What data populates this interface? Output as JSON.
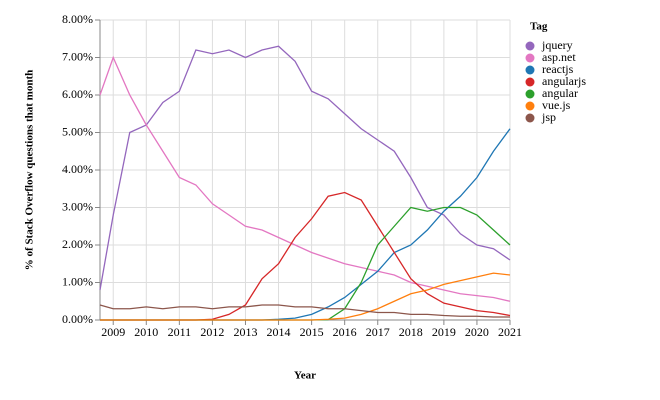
{
  "chart_data": {
    "type": "line",
    "x_label": "Year",
    "y_label": "% of Stack Overflow questions that month",
    "legend_title": "Tag",
    "legend": "right",
    "grid": true,
    "x": [
      2008.6,
      2009.0,
      2009.5,
      2010.0,
      2010.5,
      2011.0,
      2011.5,
      2012.0,
      2012.5,
      2013.0,
      2013.5,
      2014.0,
      2014.5,
      2015.0,
      2015.5,
      2016.0,
      2016.5,
      2017.0,
      2017.5,
      2018.0,
      2018.5,
      2019.0,
      2019.5,
      2020.0,
      2020.5,
      2021.0
    ],
    "xlim": [
      2008.6,
      2021.0
    ],
    "xticks": [
      2009,
      2010,
      2011,
      2012,
      2013,
      2014,
      2015,
      2016,
      2017,
      2018,
      2019,
      2020,
      2021
    ],
    "ylim": [
      0,
      8
    ],
    "yticks": [
      {
        "value": 0,
        "label": "0.00%"
      },
      {
        "value": 1,
        "label": "1.00%"
      },
      {
        "value": 2,
        "label": "2.00%"
      },
      {
        "value": 3,
        "label": "3.00%"
      },
      {
        "value": 4,
        "label": "4.00%"
      },
      {
        "value": 5,
        "label": "5.00%"
      },
      {
        "value": 6,
        "label": "6.00%"
      },
      {
        "value": 7,
        "label": "7.00%"
      },
      {
        "value": 8,
        "label": "8.00%"
      }
    ],
    "series": [
      {
        "name": "jquery",
        "color": "#9467bd",
        "values": [
          0.8,
          2.8,
          5.0,
          5.2,
          5.8,
          6.1,
          7.2,
          7.1,
          7.2,
          7.0,
          7.2,
          7.3,
          6.9,
          6.1,
          5.9,
          5.5,
          5.1,
          4.8,
          4.5,
          3.8,
          3.0,
          2.8,
          2.3,
          2.0,
          1.9,
          1.6
        ]
      },
      {
        "name": "asp.net",
        "color": "#e377c2",
        "values": [
          6.0,
          7.0,
          6.0,
          5.2,
          4.5,
          3.8,
          3.6,
          3.1,
          2.8,
          2.5,
          2.4,
          2.2,
          2.0,
          1.8,
          1.65,
          1.5,
          1.4,
          1.3,
          1.2,
          1.0,
          0.9,
          0.8,
          0.7,
          0.65,
          0.6,
          0.5
        ]
      },
      {
        "name": "reactjs",
        "color": "#1f77b4",
        "values": [
          0,
          0,
          0,
          0,
          0,
          0,
          0,
          0,
          0,
          0,
          0,
          0.02,
          0.05,
          0.15,
          0.35,
          0.6,
          0.95,
          1.3,
          1.8,
          2.0,
          2.4,
          2.9,
          3.3,
          3.8,
          4.5,
          5.1
        ]
      },
      {
        "name": "angularjs",
        "color": "#d62728",
        "values": [
          0,
          0,
          0,
          0,
          0,
          0,
          0,
          0.02,
          0.15,
          0.4,
          1.1,
          1.5,
          2.2,
          2.7,
          3.3,
          3.4,
          3.2,
          2.5,
          1.8,
          1.1,
          0.7,
          0.45,
          0.35,
          0.25,
          0.2,
          0.12
        ]
      },
      {
        "name": "angular",
        "color": "#2ca02c",
        "values": [
          0,
          0,
          0,
          0,
          0,
          0,
          0,
          0,
          0,
          0,
          0,
          0,
          0,
          0,
          0.01,
          0.3,
          1.0,
          2.0,
          2.5,
          3.0,
          2.9,
          3.0,
          3.0,
          2.8,
          2.4,
          2.0
        ]
      },
      {
        "name": "vue.js",
        "color": "#ff7f0e",
        "values": [
          0,
          0,
          0,
          0,
          0,
          0,
          0,
          0,
          0,
          0,
          0,
          0,
          0,
          0,
          0.02,
          0.05,
          0.15,
          0.3,
          0.5,
          0.7,
          0.8,
          0.95,
          1.05,
          1.15,
          1.25,
          1.2
        ]
      },
      {
        "name": "jsp",
        "color": "#8c564b",
        "values": [
          0.4,
          0.3,
          0.3,
          0.35,
          0.3,
          0.35,
          0.35,
          0.3,
          0.35,
          0.35,
          0.4,
          0.4,
          0.35,
          0.35,
          0.3,
          0.3,
          0.25,
          0.2,
          0.2,
          0.15,
          0.15,
          0.12,
          0.1,
          0.1,
          0.08,
          0.08
        ]
      }
    ]
  }
}
